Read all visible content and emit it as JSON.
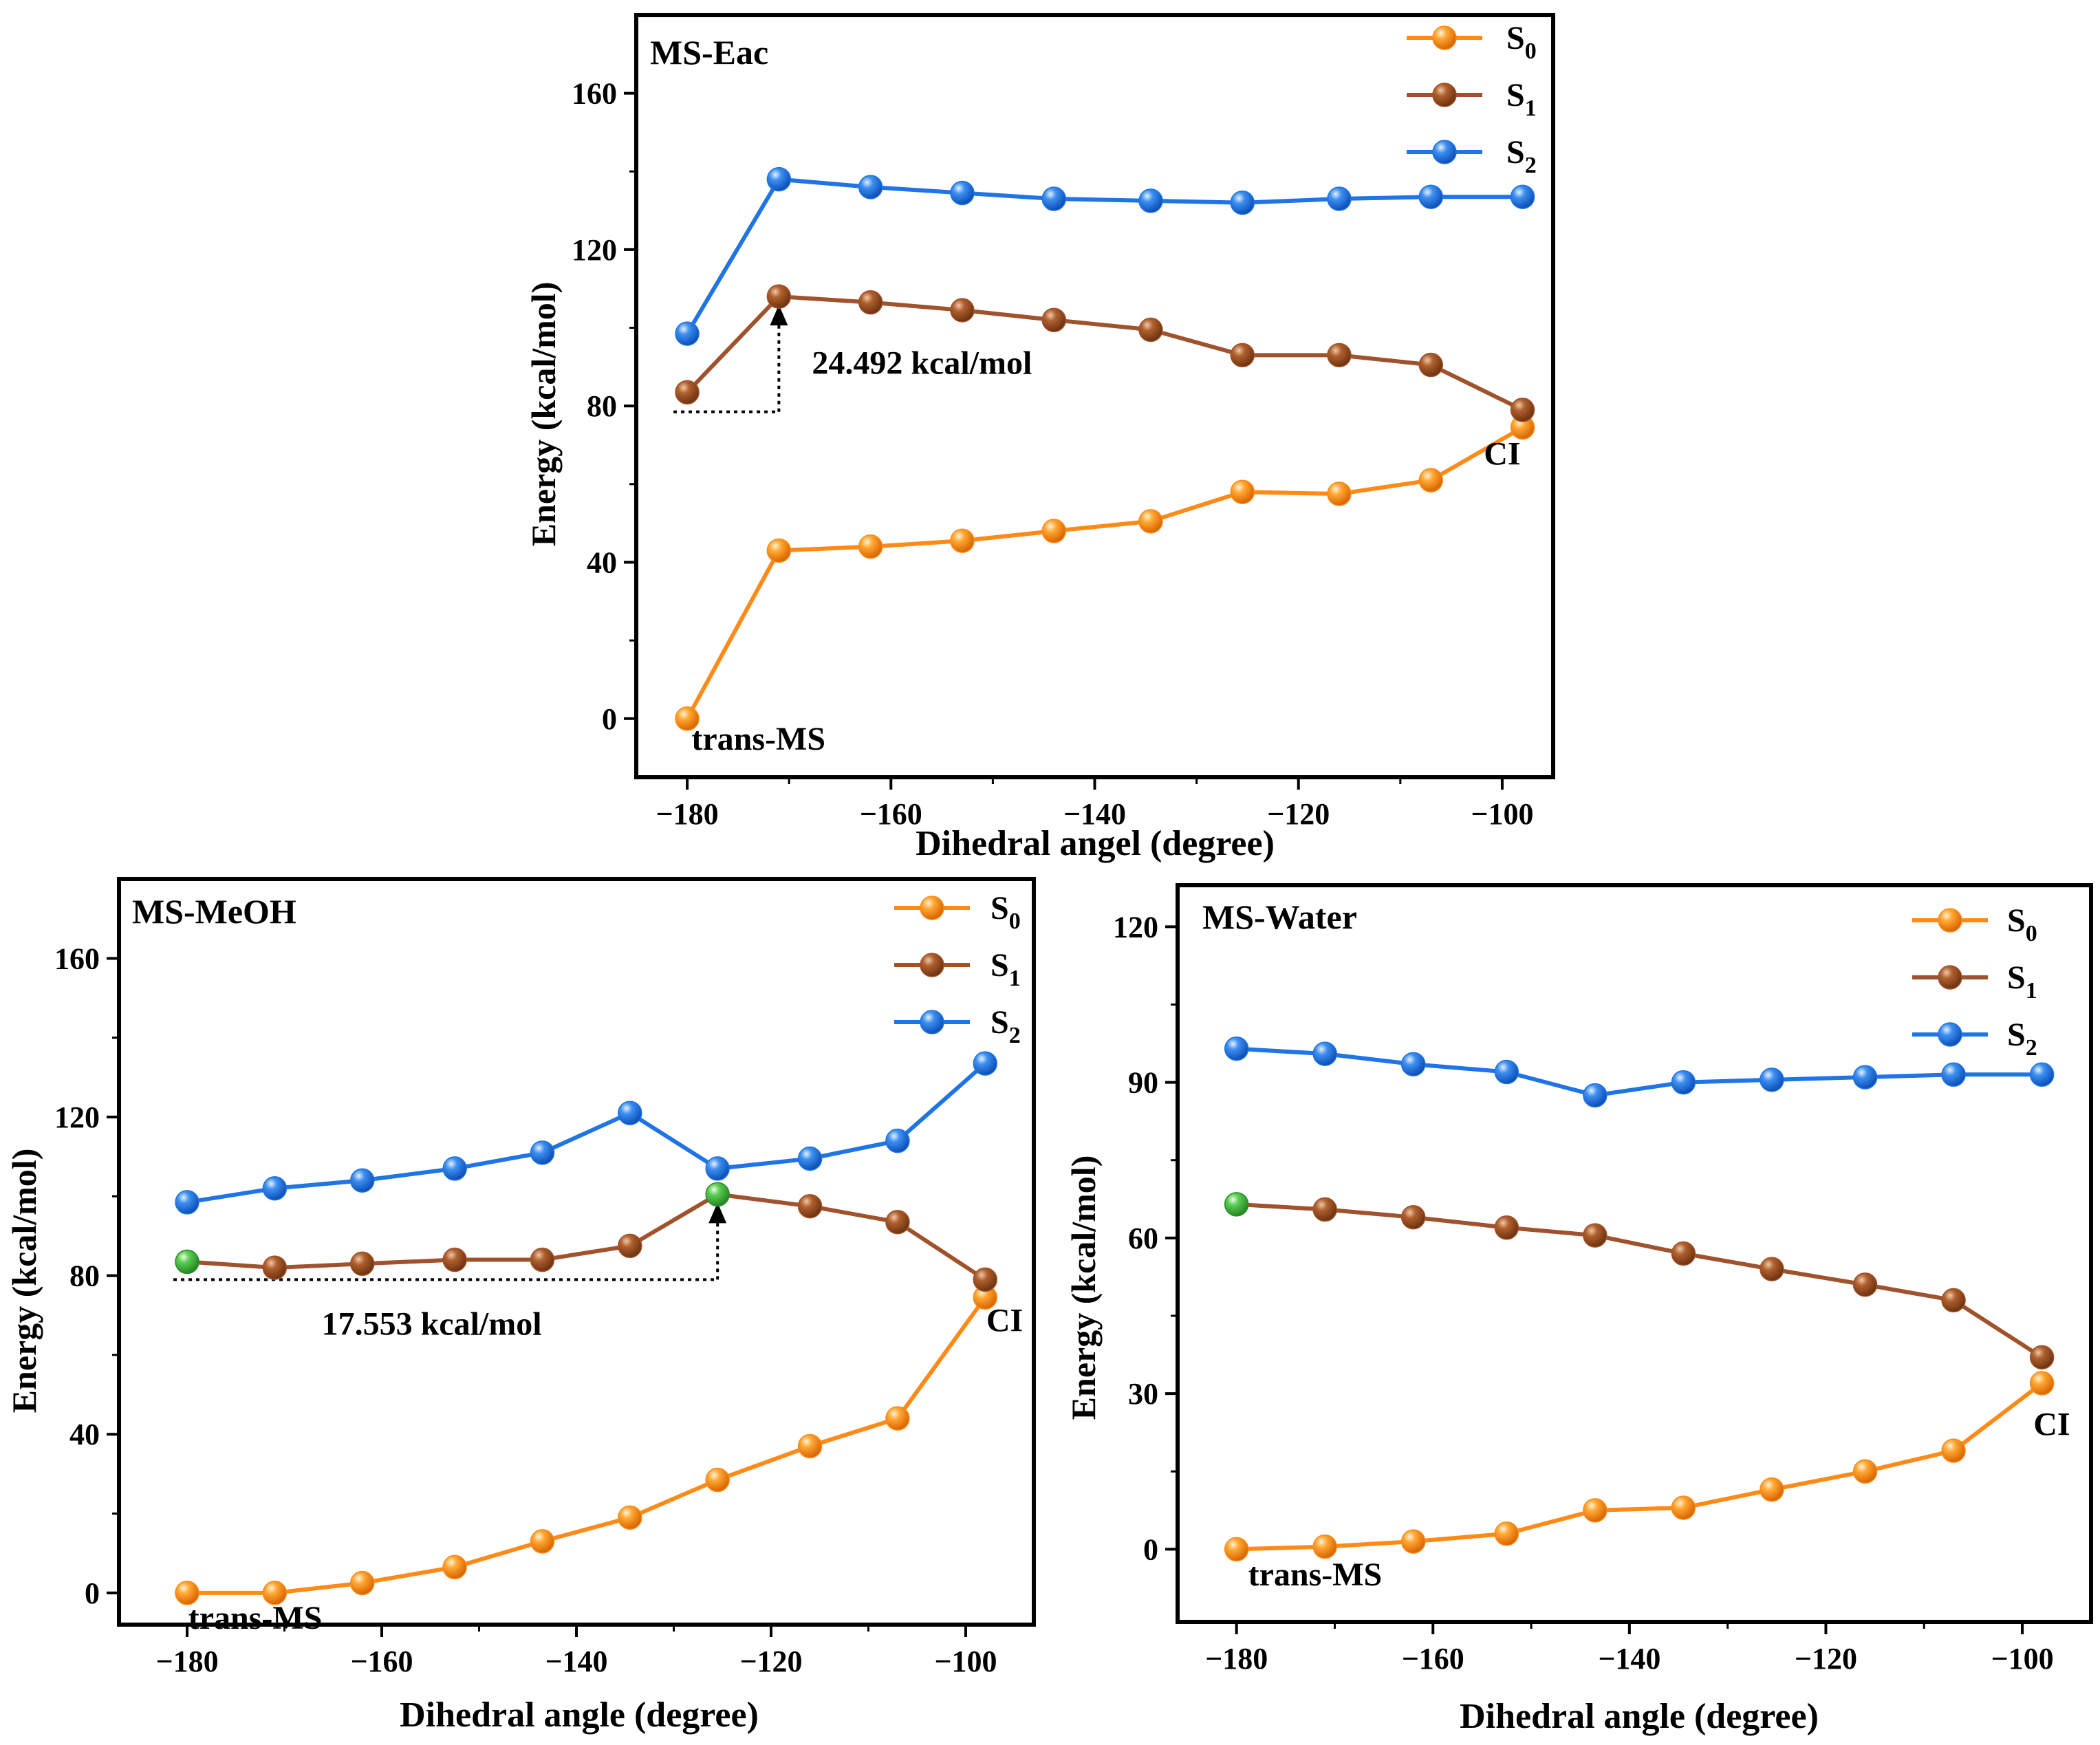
{
  "colors": {
    "s0": "#ff8a17",
    "s1": "#a0522d",
    "s2": "#1f74e6",
    "cross": "#44c04a",
    "frame": "#000000"
  },
  "chart_data": [
    {
      "type": "line",
      "title": "MS-Eac",
      "xlabel": "Dihedral angel (degree)",
      "ylabel": "Energy (kcal/mol)",
      "xlim": [
        -185,
        -95
      ],
      "ylim": [
        -15,
        180
      ],
      "xticks": [
        -180,
        -160,
        -140,
        -120,
        -100
      ],
      "yticks": [
        0,
        40,
        80,
        120,
        160
      ],
      "x": [
        -180,
        -171,
        -162,
        -153,
        -144,
        -134.5,
        -125.5,
        -116,
        -107,
        -98
      ],
      "series": [
        {
          "name": "S",
          "sub": "0",
          "color": "s0",
          "values": [
            0,
            43,
            44,
            45.5,
            48,
            50.5,
            58,
            57.5,
            61,
            74.5
          ]
        },
        {
          "name": "S",
          "sub": "1",
          "color": "s1",
          "values": [
            83.5,
            108,
            106.5,
            104.5,
            102,
            99.5,
            93,
            93,
            90.5,
            79
          ]
        },
        {
          "name": "S",
          "sub": "2",
          "color": "s2",
          "values": [
            98.5,
            138,
            136,
            134.5,
            133,
            132.5,
            132,
            133,
            133.5,
            133.5
          ]
        }
      ],
      "highlight_points": [],
      "annotations": [
        {
          "text": "24.492 kcal/mol",
          "kind": "barrier",
          "from": [
            -180,
            78.5
          ],
          "to": [
            -171,
            108
          ]
        },
        {
          "text": "CI",
          "kind": "label",
          "at": [
            -100,
            65
          ]
        },
        {
          "text": "trans-MS",
          "kind": "label",
          "at": [
            -173,
            -8
          ]
        }
      ]
    },
    {
      "type": "line",
      "title": "MS-MeOH",
      "xlabel": "Dihedral angle (degree)",
      "ylabel": "Energy (kcal/mol)",
      "xlim": [
        -187,
        -93
      ],
      "ylim": [
        -8,
        180
      ],
      "xticks": [
        -180,
        -160,
        -140,
        -120,
        -100
      ],
      "yticks": [
        0,
        40,
        80,
        120,
        160
      ],
      "x": [
        -180,
        -171,
        -162,
        -152.5,
        -143.5,
        -134.5,
        -125.5,
        -116,
        -107,
        -98
      ],
      "series": [
        {
          "name": "S",
          "sub": "0",
          "color": "s0",
          "values": [
            0,
            0,
            2.5,
            6.5,
            13,
            19,
            28.5,
            37,
            44,
            74.5
          ]
        },
        {
          "name": "S",
          "sub": "1",
          "color": "s1",
          "values": [
            83.5,
            82,
            83,
            84,
            84,
            87.5,
            100.5,
            97.5,
            93.5,
            79
          ]
        },
        {
          "name": "S",
          "sub": "2",
          "color": "s2",
          "values": [
            98.5,
            102,
            104,
            107,
            111,
            121,
            107,
            109.5,
            114,
            133.5
          ]
        }
      ],
      "highlight_points": [
        {
          "series": 1,
          "index": 0
        },
        {
          "series": 1,
          "index": 6
        }
      ],
      "annotations": [
        {
          "text": "17.553 kcal/mol",
          "kind": "barrier",
          "from": [
            -180,
            79
          ],
          "to": [
            -125.5,
            100.5
          ]
        },
        {
          "text": "CI",
          "kind": "label",
          "at": [
            -96,
            66
          ]
        },
        {
          "text": "trans-MS",
          "kind": "label",
          "at": [
            -173,
            -9
          ]
        }
      ]
    },
    {
      "type": "line",
      "title": "MS-Water",
      "xlabel": "Dihedral angle (degree)",
      "ylabel": "Energy (kcal/mol)",
      "xlim": [
        -186,
        -93
      ],
      "ylim": [
        -14,
        128
      ],
      "xticks": [
        -180,
        -160,
        -140,
        -120,
        -100
      ],
      "yticks": [
        0,
        30,
        60,
        90,
        120
      ],
      "x": [
        -180,
        -171,
        -162,
        -152.5,
        -143.5,
        -134.5,
        -125.5,
        -116,
        -107,
        -98
      ],
      "series": [
        {
          "name": "S",
          "sub": "0",
          "color": "s0",
          "values": [
            0,
            0.5,
            1.5,
            3,
            7.5,
            8,
            11.5,
            15,
            19,
            32
          ]
        },
        {
          "name": "S",
          "sub": "1",
          "color": "s1",
          "values": [
            66.5,
            65.5,
            64,
            62,
            60.5,
            57,
            54,
            51,
            48,
            37
          ]
        },
        {
          "name": "S",
          "sub": "2",
          "color": "s2",
          "values": [
            96.5,
            95.5,
            93.5,
            92,
            87.5,
            90,
            90.5,
            91,
            91.5,
            91.5
          ]
        }
      ],
      "highlight_points": [
        {
          "series": 1,
          "index": 0
        }
      ],
      "annotations": [
        {
          "text": "CI",
          "kind": "label",
          "at": [
            -97,
            22
          ]
        },
        {
          "text": "trans-MS",
          "kind": "label",
          "at": [
            -172,
            -7
          ]
        }
      ]
    }
  ]
}
